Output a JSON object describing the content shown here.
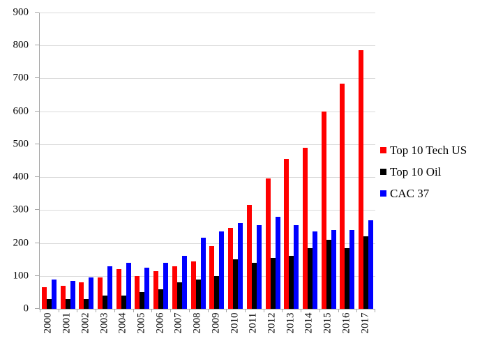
{
  "chart_data": {
    "type": "bar",
    "title": "",
    "categories": [
      "2000",
      "2001",
      "2002",
      "2003",
      "2004",
      "2005",
      "2006",
      "2007",
      "2008",
      "2009",
      "2010",
      "2011",
      "2012",
      "2013",
      "2014",
      "2015",
      "2016",
      "2017"
    ],
    "series": [
      {
        "name": "Top 10 Tech US",
        "color": "#ff0000",
        "values": [
          65,
          70,
          80,
          95,
          120,
          100,
          115,
          130,
          145,
          190,
          245,
          315,
          395,
          455,
          490,
          600,
          685,
          785
        ]
      },
      {
        "name": "Top 10 Oil",
        "color": "#000000",
        "values": [
          30,
          30,
          30,
          40,
          40,
          50,
          60,
          80,
          90,
          100,
          150,
          140,
          155,
          160,
          185,
          210,
          185,
          220
        ]
      },
      {
        "name": "CAC 37",
        "color": "#0000ff",
        "values": [
          90,
          85,
          95,
          130,
          140,
          125,
          140,
          160,
          215,
          235,
          260,
          255,
          280,
          255,
          235,
          240,
          240,
          270
        ]
      }
    ],
    "ylim": [
      0,
      900
    ],
    "yticks": [
      0,
      100,
      200,
      300,
      400,
      500,
      600,
      700,
      800,
      900
    ],
    "grid": "horizontal",
    "legend_position": "right"
  },
  "colors": {
    "gridline": "#d9d9d9",
    "axis": "#a6a6a6",
    "background": "#ffffff",
    "text": "#000000"
  }
}
